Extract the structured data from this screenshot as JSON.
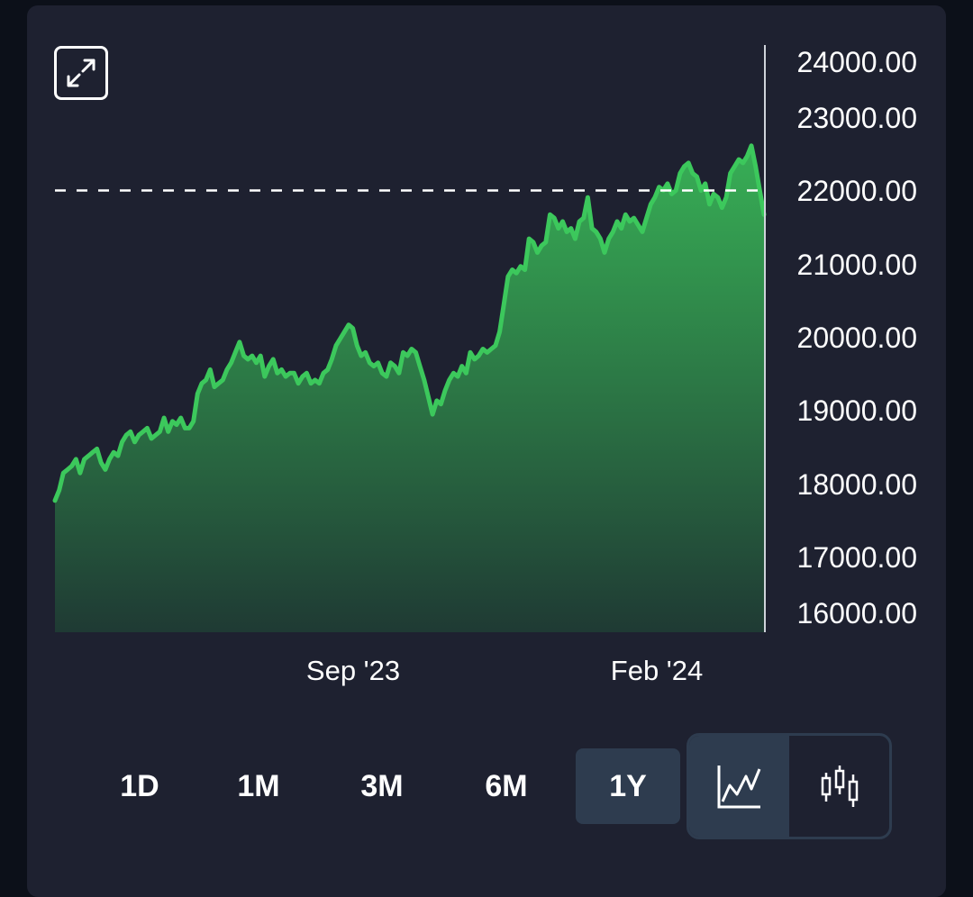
{
  "chart_data": {
    "type": "area",
    "x_ticks": [
      "Sep '23",
      "Feb '24"
    ],
    "y_ticks": [
      "24000.00",
      "23000.00",
      "22000.00",
      "21000.00",
      "20000.00",
      "19000.00",
      "18000.00",
      "17000.00",
      "16000.00"
    ],
    "ylim": [
      16000,
      24000
    ],
    "reference_line": 22150,
    "series": [
      {
        "line_color": "#3cc85c",
        "values": [
          17650,
          17800,
          18050,
          18100,
          18150,
          18250,
          18050,
          18250,
          18300,
          18350,
          18400,
          18200,
          18100,
          18250,
          18350,
          18300,
          18500,
          18600,
          18650,
          18500,
          18600,
          18650,
          18700,
          18550,
          18600,
          18650,
          18850,
          18650,
          18800,
          18750,
          18850,
          18700,
          18700,
          18800,
          19200,
          19350,
          19400,
          19550,
          19300,
          19350,
          19400,
          19550,
          19650,
          19800,
          19950,
          19750,
          19700,
          19750,
          19650,
          19750,
          19450,
          19600,
          19700,
          19500,
          19550,
          19450,
          19500,
          19500,
          19350,
          19450,
          19500,
          19350,
          19400,
          19350,
          19500,
          19550,
          19700,
          19900,
          20000,
          20100,
          20200,
          20150,
          19900,
          19750,
          19800,
          19650,
          19600,
          19650,
          19500,
          19450,
          19650,
          19600,
          19500,
          19800,
          19750,
          19850,
          19800,
          19600,
          19400,
          19150,
          18900,
          19100,
          19050,
          19250,
          19400,
          19500,
          19450,
          19600,
          19500,
          19800,
          19700,
          19750,
          19850,
          19800,
          19850,
          19900,
          20100,
          20500,
          20900,
          21000,
          20950,
          21050,
          21000,
          21450,
          21400,
          21250,
          21350,
          21400,
          21800,
          21750,
          21600,
          21700,
          21550,
          21600,
          21450,
          21700,
          21750,
          22050,
          21600,
          21550,
          21450,
          21250,
          21450,
          21550,
          21700,
          21600,
          21800,
          21700,
          21750,
          21650,
          21550,
          21750,
          21950,
          22050,
          22200,
          22150,
          22250,
          22100,
          22150,
          22400,
          22500,
          22550,
          22400,
          22350,
          22150,
          22250,
          21950,
          22100,
          22050,
          21900,
          22050,
          22400,
          22500,
          22600,
          22550,
          22650,
          22800,
          22500,
          22150,
          21800
        ]
      }
    ]
  },
  "range_buttons": [
    "1D",
    "1M",
    "3M",
    "6M",
    "1Y"
  ],
  "active_range": "1Y",
  "chart_types": [
    "line-chart-icon",
    "candlestick-icon"
  ],
  "active_chart_type": "line-chart-icon",
  "colors": {
    "line": "#3cc85c",
    "background": "#1e2130",
    "active_button": "#2e3c4f",
    "text": "#ffffff"
  }
}
